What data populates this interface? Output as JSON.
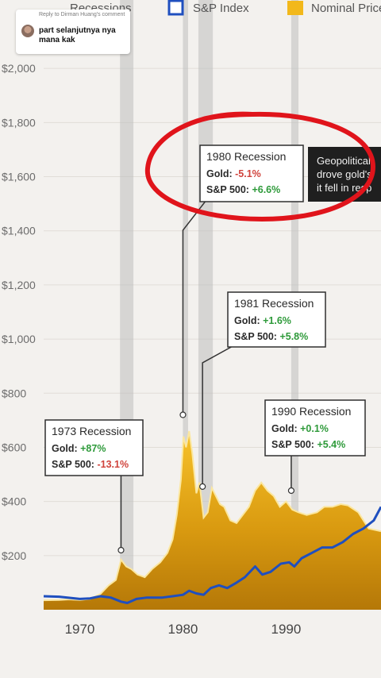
{
  "comment": {
    "reply_to": "Reply to Dirman Huang's comment",
    "text": "part selanjutnya nya mana kak"
  },
  "legend": [
    {
      "label": "Recessions",
      "color": "#b9b9b9"
    },
    {
      "label": "S&P Index",
      "color": "#1f4fbf"
    },
    {
      "label": "Nominal Price",
      "color": "#f2b81b"
    }
  ],
  "chart_data": {
    "type": "area",
    "x_ticks": [
      "1970",
      "1980",
      "1990"
    ],
    "y_ticks": [
      "$200",
      "$400",
      "$600",
      "$800",
      "$1,000",
      "$1,200",
      "$1,400",
      "$1,600",
      "$1,800",
      "$2,000"
    ],
    "xlim": [
      1966.5,
      1999.2
    ],
    "ylim": [
      0,
      2150
    ],
    "recessions": [
      [
        1973.9,
        1975.2
      ],
      [
        1980.0,
        1980.5
      ],
      [
        1981.5,
        1982.9
      ],
      [
        1990.5,
        1991.2
      ]
    ],
    "series": [
      {
        "name": "Nominal Price",
        "color": "#f2b81b",
        "x": [
          1966.5,
          1968,
          1969,
          1970,
          1971,
          1972,
          1972.8,
          1973.5,
          1974,
          1974.5,
          1975,
          1975.6,
          1976.3,
          1977,
          1977.8,
          1978.5,
          1979.0,
          1979.4,
          1979.8,
          1980.05,
          1980.3,
          1980.6,
          1980.9,
          1981.3,
          1981.6,
          1982.0,
          1982.4,
          1982.8,
          1983.2,
          1983.6,
          1984.0,
          1984.6,
          1985.2,
          1985.8,
          1986.4,
          1987.0,
          1987.6,
          1988.2,
          1988.8,
          1989.4,
          1990.0,
          1990.6,
          1991.2,
          1992.0,
          1993.0,
          1993.7,
          1994.5,
          1995.3,
          1996.0,
          1997.0,
          1998.0,
          1999.2
        ],
        "y": [
          35,
          36,
          38,
          36,
          40,
          58,
          90,
          110,
          185,
          160,
          150,
          130,
          120,
          150,
          175,
          210,
          260,
          350,
          480,
          640,
          600,
          660,
          580,
          430,
          470,
          340,
          360,
          450,
          420,
          390,
          380,
          330,
          320,
          350,
          380,
          440,
          470,
          440,
          420,
          380,
          400,
          370,
          360,
          350,
          360,
          380,
          380,
          390,
          385,
          360,
          300,
          290
        ]
      },
      {
        "name": "S&P Index",
        "color": "#1f4fbf",
        "x": [
          1966.5,
          1968,
          1970,
          1971,
          1972,
          1973,
          1974,
          1974.6,
          1975.5,
          1976.5,
          1978,
          1979,
          1980,
          1980.6,
          1981.3,
          1982.0,
          1982.7,
          1983.5,
          1984.3,
          1985.2,
          1986.0,
          1987.0,
          1987.7,
          1988.5,
          1989.5,
          1990.3,
          1990.8,
          1991.5,
          1992.5,
          1993.5,
          1994.5,
          1995.5,
          1996.5,
          1997.5,
          1998.5,
          1999.2
        ],
        "y": [
          50,
          48,
          40,
          42,
          50,
          45,
          30,
          25,
          40,
          45,
          45,
          50,
          55,
          70,
          60,
          55,
          80,
          90,
          80,
          100,
          120,
          160,
          130,
          140,
          170,
          175,
          160,
          190,
          210,
          230,
          230,
          250,
          280,
          300,
          330,
          380
        ]
      }
    ],
    "annotations": [
      {
        "title": "1973 Recession",
        "x": 1974.0,
        "y": 220,
        "gold_label": "Gold:",
        "gold": "+87%",
        "sp_label": "S&P 500:",
        "sp": "-13.1%",
        "gold_pos": true,
        "sp_pos": false
      },
      {
        "title": "1980 Recession",
        "x": 1980.0,
        "y": 720,
        "gold_label": "Gold:",
        "gold": "-5.1%",
        "sp_label": "S&P 500:",
        "sp": "+6.6%",
        "gold_pos": false,
        "sp_pos": true
      },
      {
        "title": "1981 Recession",
        "x": 1981.9,
        "y": 455,
        "gold_label": "Gold:",
        "gold": "+1.6%",
        "sp_label": "S&P 500:",
        "sp": "+5.8%",
        "gold_pos": true,
        "sp_pos": true
      },
      {
        "title": "1990 Recession",
        "x": 1990.5,
        "y": 440,
        "gold_label": "Gold:",
        "gold": "+0.1%",
        "sp_label": "S&P 500:",
        "sp": "+5.4%",
        "gold_pos": true,
        "sp_pos": true
      }
    ],
    "callout_lines": [
      "Geopolitical",
      "drove gold's",
      "it fell in resp"
    ]
  }
}
